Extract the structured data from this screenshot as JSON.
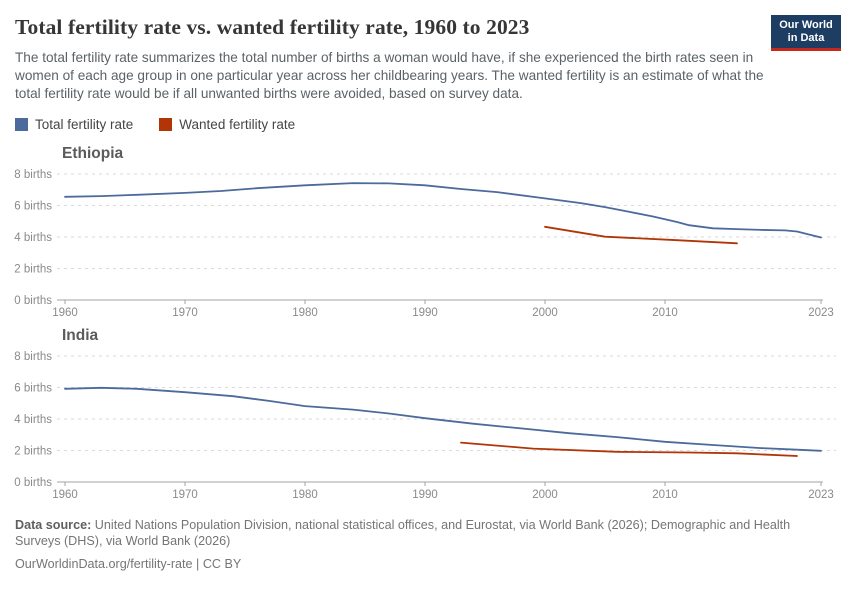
{
  "header": {
    "title": "Total fertility rate vs. wanted fertility rate, 1960 to 2023",
    "subtitle": "The total fertility rate summarizes the total number of births a woman would have, if she experienced the birth rates seen in women of each age group in one particular year across her childbearing years. The wanted fertility is an estimate of what the total fertility rate would be if all unwanted births were avoided, based on survey data.",
    "logo": {
      "line1": "Our World",
      "line2": "in Data",
      "bg": "#1d3d63",
      "accent": "#c5281c"
    }
  },
  "legend": {
    "items": [
      {
        "label": "Total fertility rate",
        "color": "#4c6a9c"
      },
      {
        "label": "Wanted fertility rate",
        "color": "#b13507"
      }
    ]
  },
  "chart_data": [
    {
      "type": "line",
      "title": "Ethiopia",
      "xlabel": "",
      "ylabel": "births",
      "xlim": [
        1960,
        2023
      ],
      "ylim": [
        0,
        8
      ],
      "x_ticks": [
        1960,
        1970,
        1980,
        1990,
        2000,
        2010,
        2023
      ],
      "y_ticks": [
        0,
        2,
        4,
        6,
        8
      ],
      "y_tick_suffix": " births",
      "grid": true,
      "legend_position": "top",
      "series": [
        {
          "name": "Total fertility rate",
          "color": "#4c6a9c",
          "points": [
            [
              1960,
              6.55
            ],
            [
              1963,
              6.6
            ],
            [
              1966,
              6.68
            ],
            [
              1970,
              6.8
            ],
            [
              1973,
              6.92
            ],
            [
              1976,
              7.1
            ],
            [
              1980,
              7.28
            ],
            [
              1984,
              7.42
            ],
            [
              1987,
              7.4
            ],
            [
              1990,
              7.28
            ],
            [
              1993,
              7.05
            ],
            [
              1996,
              6.85
            ],
            [
              2000,
              6.45
            ],
            [
              2003,
              6.15
            ],
            [
              2005,
              5.9
            ],
            [
              2007,
              5.6
            ],
            [
              2009,
              5.3
            ],
            [
              2011,
              4.95
            ],
            [
              2012,
              4.75
            ],
            [
              2014,
              4.55
            ],
            [
              2016,
              4.5
            ],
            [
              2018,
              4.45
            ],
            [
              2020,
              4.42
            ],
            [
              2021,
              4.35
            ],
            [
              2023,
              3.97
            ]
          ]
        },
        {
          "name": "Wanted fertility rate",
          "color": "#b13507",
          "points": [
            [
              2000,
              4.65
            ],
            [
              2005,
              4.02
            ],
            [
              2011,
              3.8
            ],
            [
              2016,
              3.6
            ]
          ]
        }
      ]
    },
    {
      "type": "line",
      "title": "India",
      "xlabel": "",
      "ylabel": "births",
      "xlim": [
        1960,
        2023
      ],
      "ylim": [
        0,
        8
      ],
      "x_ticks": [
        1960,
        1970,
        1980,
        1990,
        2000,
        2010,
        2023
      ],
      "y_ticks": [
        0,
        2,
        4,
        6,
        8
      ],
      "y_tick_suffix": " births",
      "grid": true,
      "legend_position": "top",
      "series": [
        {
          "name": "Total fertility rate",
          "color": "#4c6a9c",
          "points": [
            [
              1960,
              5.92
            ],
            [
              1963,
              5.98
            ],
            [
              1966,
              5.92
            ],
            [
              1970,
              5.7
            ],
            [
              1974,
              5.45
            ],
            [
              1977,
              5.15
            ],
            [
              1980,
              4.82
            ],
            [
              1984,
              4.6
            ],
            [
              1987,
              4.35
            ],
            [
              1990,
              4.05
            ],
            [
              1994,
              3.7
            ],
            [
              1998,
              3.4
            ],
            [
              2002,
              3.1
            ],
            [
              2006,
              2.85
            ],
            [
              2010,
              2.55
            ],
            [
              2014,
              2.35
            ],
            [
              2018,
              2.15
            ],
            [
              2021,
              2.05
            ],
            [
              2023,
              1.98
            ]
          ]
        },
        {
          "name": "Wanted fertility rate",
          "color": "#b13507",
          "points": [
            [
              1993,
              2.5
            ],
            [
              1999,
              2.12
            ],
            [
              2006,
              1.92
            ],
            [
              2012,
              1.87
            ],
            [
              2016,
              1.82
            ],
            [
              2021,
              1.65
            ]
          ]
        }
      ]
    }
  ],
  "footer": {
    "data_source_label": "Data source:",
    "data_source_text": "United Nations Population Division, national statistical offices, and Eurostat, via World Bank (2026); Demographic and Health Surveys (DHS), via World Bank (2026)",
    "link": "OurWorldinData.org/fertility-rate",
    "license_suffix": " | CC BY"
  }
}
